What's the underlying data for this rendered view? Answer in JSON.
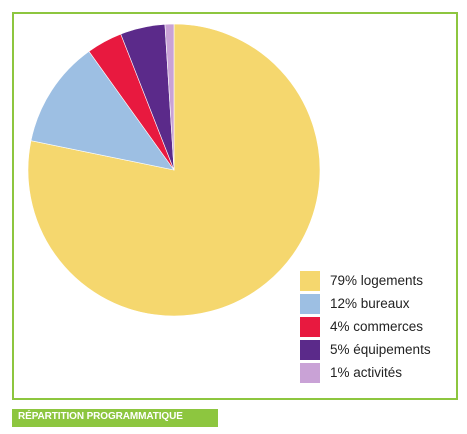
{
  "chart_data": {
    "type": "pie",
    "title": "",
    "slices": [
      {
        "label": "79% logements",
        "value": 79,
        "color": "#f5d76e"
      },
      {
        "label": "12% bureaux",
        "value": 12,
        "color": "#9dbfe3"
      },
      {
        "label": "4% commerces",
        "value": 4,
        "color": "#e8193f"
      },
      {
        "label": "5% équipements",
        "value": 5,
        "color": "#5b2a8a"
      },
      {
        "label": "1% activités",
        "value": 1,
        "color": "#c9a2d6"
      }
    ],
    "legend_placement": "bottom-right"
  },
  "caption": {
    "label": "RÉPARTITION PROGRAMMATIQUE",
    "color": "#8dc63f"
  }
}
